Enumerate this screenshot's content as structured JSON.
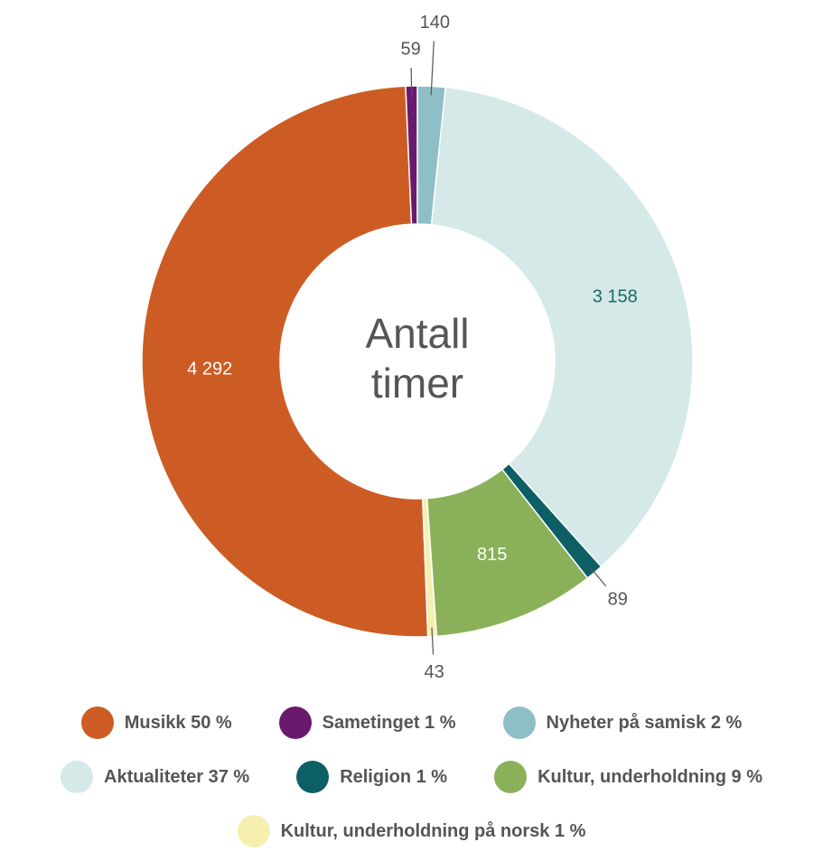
{
  "chart_data": {
    "type": "donut",
    "center_label": [
      "Antall",
      "timer"
    ],
    "categories": [
      "Musikk 50 %",
      "Sametinget 1 %",
      "Nyheter på samisk 2 %",
      "Aktualiteter 37 %",
      "Religion 1 %",
      "Kultur, underholdning 9 %",
      "Kultur, underholdning på norsk 1 %"
    ],
    "values": [
      4292,
      59,
      140,
      3158,
      89,
      815,
      43
    ],
    "value_labels": [
      "4 292",
      "59",
      "140",
      "3 158",
      "89",
      "815",
      "43"
    ],
    "colors": [
      "#cd5c24",
      "#6a1a6e",
      "#8fbfc6",
      "#d4e9e8",
      "#0d5f66",
      "#8ab15a",
      "#f5f0b0"
    ]
  }
}
